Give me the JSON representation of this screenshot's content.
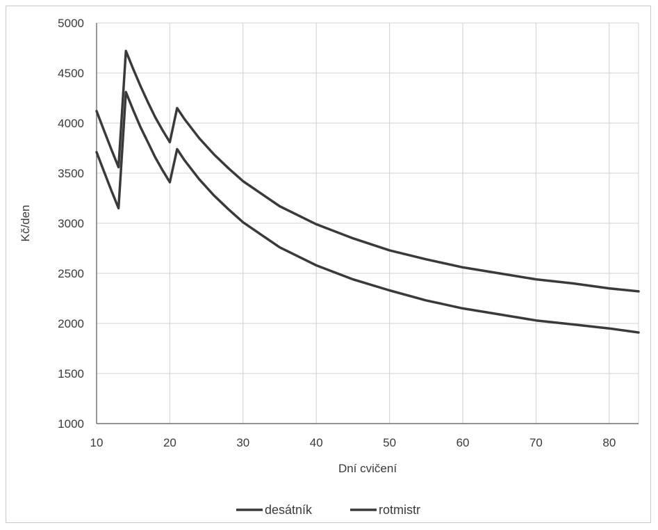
{
  "chart_data": {
    "type": "line",
    "title": "",
    "xlabel": "Dní cvičení",
    "ylabel": "Kč/den",
    "xlim": [
      10,
      84
    ],
    "ylim": [
      1000,
      5000
    ],
    "x_ticks": [
      10,
      20,
      30,
      40,
      50,
      60,
      70,
      80
    ],
    "y_ticks": [
      1000,
      1500,
      2000,
      2500,
      3000,
      3500,
      4000,
      4500,
      5000
    ],
    "grid": true,
    "legend_position": "bottom",
    "line_color": "#3a3a3a",
    "series": [
      {
        "name": "desátník",
        "x": [
          10,
          11,
          12,
          13,
          14,
          15,
          16,
          17,
          18,
          19,
          20,
          21,
          22,
          24,
          26,
          28,
          30,
          35,
          40,
          45,
          50,
          55,
          60,
          65,
          70,
          75,
          80,
          84
        ],
        "y": [
          3710,
          3520,
          3330,
          3150,
          4310,
          4130,
          3960,
          3810,
          3660,
          3530,
          3410,
          3740,
          3630,
          3440,
          3280,
          3140,
          3010,
          2760,
          2580,
          2440,
          2330,
          2230,
          2150,
          2090,
          2030,
          1990,
          1950,
          1910
        ]
      },
      {
        "name": "rotmistr",
        "x": [
          10,
          11,
          12,
          13,
          14,
          15,
          16,
          17,
          18,
          19,
          20,
          21,
          22,
          24,
          26,
          28,
          30,
          35,
          40,
          45,
          50,
          55,
          60,
          65,
          70,
          75,
          80,
          84
        ],
        "y": [
          4120,
          3930,
          3740,
          3560,
          4720,
          4540,
          4370,
          4210,
          4060,
          3930,
          3810,
          4150,
          4040,
          3850,
          3690,
          3550,
          3420,
          3170,
          2990,
          2850,
          2730,
          2640,
          2560,
          2500,
          2440,
          2400,
          2350,
          2320
        ]
      }
    ]
  }
}
